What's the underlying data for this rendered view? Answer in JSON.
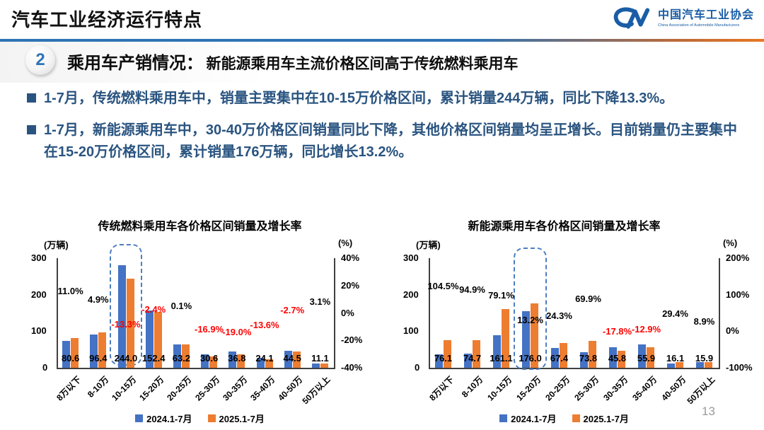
{
  "header": {
    "title": "汽车工业经济运行特点",
    "logo": {
      "org_cn": "中国汽车工业协会",
      "org_en": "China Association of Automobile Manufacturers"
    }
  },
  "section": {
    "badge": "2",
    "title": "乘用车产销情况：",
    "subtitle": "新能源乘用车主流价格区间高于传统燃料乘用车"
  },
  "bullets": [
    "1-7月，传统燃料乘用车中，销量主要集中在10-15万价格区间，累计销量244万辆，同比下降13.3%。",
    "1-7月，新能源乘用车中，30-40万价格区间销量同比下降，其他价格区间销量均呈正增长。目前销量仍主要集中在15-20万价格区间，累计销量176万辆，同比增长13.2%。"
  ],
  "colors": {
    "bar_2024": "#4472C4",
    "bar_2025": "#ED7D31",
    "growth_negative": "#FF0000",
    "growth_positive": "#000000",
    "bullet_navy": "#2A5480",
    "divider_blue": "#2E74B5",
    "divider_orange": "#E87722",
    "highlight_border": "#4d7ebf",
    "logo_blue": "#1A5DA6"
  },
  "page": {
    "number": "13"
  },
  "chart_data": [
    {
      "type": "bar",
      "title": "传统燃料乘用车各价格区间销量及增长率",
      "left_axis_label": "(万辆)",
      "right_axis_label": "(%)",
      "left_ticks": [
        "300",
        "200",
        "100",
        "0"
      ],
      "right_ticks": [
        "40%",
        "20%",
        "0%",
        "-20%",
        "-40%"
      ],
      "left_max": 300,
      "right_axis_range": [
        -40,
        40
      ],
      "grid": false,
      "legend_position": "bottom",
      "categories": [
        "8万以下",
        "8-10万",
        "10-15万",
        "15-20万",
        "20-25万",
        "25-30万",
        "30-35万",
        "35-40万",
        "40-50万",
        "50万以上"
      ],
      "series": [
        {
          "name": "2024.1-7月",
          "color": "#4472C4",
          "values": [
            72.6,
            91.9,
            281.4,
            156.1,
            63.1,
            36.8,
            45.4,
            27.9,
            45.7,
            10.8
          ]
        },
        {
          "name": "2025.1-7月",
          "color": "#ED7D31",
          "values": [
            80.6,
            96.4,
            244.0,
            152.4,
            63.2,
            30.6,
            36.8,
            24.1,
            44.5,
            11.1
          ]
        }
      ],
      "value_labels": [
        "80.6",
        "96.4",
        "244.0",
        "152.4",
        "63.2",
        "30.6",
        "36.8",
        "24.1",
        "44.5",
        "11.1"
      ],
      "growth_pct": [
        11.0,
        4.9,
        -13.3,
        -2.4,
        0.1,
        -16.9,
        -19.0,
        -13.6,
        -2.7,
        3.1
      ],
      "highlight_index": 2
    },
    {
      "type": "bar",
      "title": "新能源乘用车各价格区间销量及增长率",
      "left_axis_label": "(万辆)",
      "right_axis_label": "(%)",
      "left_ticks": [
        "300",
        "200",
        "100",
        "0"
      ],
      "right_ticks": [
        "200%",
        "100%",
        "0%",
        "-100%"
      ],
      "left_max": 300,
      "right_axis_range": [
        -100,
        200
      ],
      "grid": false,
      "legend_position": "bottom",
      "categories": [
        "8万以下",
        "8-10万",
        "10-15万",
        "15-20万",
        "20-25万",
        "25-30万",
        "30-35万",
        "35-40万",
        "40-50万",
        "50万以上"
      ],
      "series": [
        {
          "name": "2024.1-7月",
          "color": "#4472C4",
          "values": [
            37.2,
            38.3,
            90.0,
            155.5,
            54.2,
            43.4,
            55.7,
            64.2,
            12.4,
            14.6
          ]
        },
        {
          "name": "2025.1-7月",
          "color": "#ED7D31",
          "values": [
            76.1,
            74.7,
            161.1,
            176.0,
            67.4,
            73.8,
            45.8,
            55.9,
            16.1,
            15.9
          ]
        }
      ],
      "value_labels": [
        "76.1",
        "74.7",
        "161.1",
        "176.0",
        "67.4",
        "73.8",
        "45.8",
        "55.9",
        "16.1",
        "15.9"
      ],
      "growth_pct": [
        104.5,
        94.9,
        79.1,
        13.2,
        24.3,
        69.9,
        -17.8,
        -12.9,
        29.4,
        8.9
      ],
      "highlight_index": 3
    }
  ]
}
